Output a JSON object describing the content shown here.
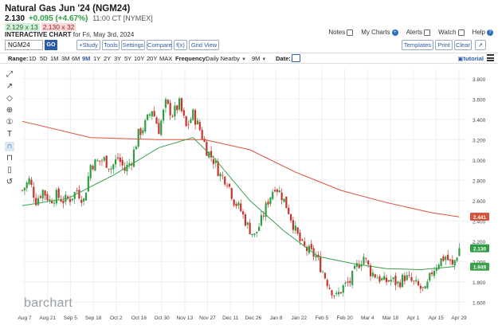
{
  "header": {
    "title": "Natural Gas Jun '24 (NGM24)",
    "last": "2.130",
    "change": "+0.095 (+4.67%)",
    "time": "11:00 CT [NYMEX]",
    "bid": "2.129 x 13",
    "ask": "2.130 x 32",
    "subtitle_bold": "INTERACTIVE CHART",
    "subtitle_rest": "for Fri, May 3rd, 2024"
  },
  "links": {
    "notes": "Notes",
    "mycharts": "My Charts",
    "alerts": "Alerts",
    "watch": "Watch",
    "help": "Help"
  },
  "toolbar": {
    "symbol": "NGM24",
    "go": "GO",
    "study": "+Study",
    "tools": "Tools",
    "settings": "Settings",
    "compare": "Compare",
    "fx": "f(x)",
    "gridview": "Grid View",
    "templates": "Templates",
    "print": "Print",
    "clear": "Clear",
    "expand": "↗"
  },
  "rangebar": {
    "range_label": "Range:",
    "ranges": [
      "1D",
      "5D",
      "1M",
      "3M",
      "6M",
      "9M",
      "1Y",
      "2Y",
      "3Y",
      "5Y",
      "10Y",
      "20Y",
      "MAX"
    ],
    "active_range": "9M",
    "frequency_label": "Frequency:",
    "frequency": "Daily Nearby",
    "period": "9M",
    "date_label": "Date:",
    "tutorial": "tutorial"
  },
  "sidebar_tools": [
    "line-tool-icon",
    "arrow-tool-icon",
    "shape-tool-icon",
    "fib-tool-icon",
    "number-tool-icon",
    "text-tool-icon",
    "magnet-tool-icon",
    "lock-tool-icon",
    "trash-tool-icon",
    "reset-tool-icon"
  ],
  "watermark": "barchart",
  "chart_data": {
    "type": "candlestick",
    "symbol": "NGM24",
    "x_labels": [
      "Aug 7",
      "Aug 21",
      "Sep 5",
      "Sep 18",
      "Oct 2",
      "Oct 16",
      "Oct 30",
      "Nov 13",
      "Nov 27",
      "Dec 11",
      "Dec 26",
      "Jan 8",
      "Jan 22",
      "Feb 5",
      "Feb 20",
      "Mar 4",
      "Mar 18",
      "Apr 1",
      "Apr 15",
      "Apr 29"
    ],
    "y_ticks": [
      "3.800",
      "3.600",
      "3.400",
      "3.200",
      "3.000",
      "2.800",
      "2.600",
      "2.400",
      "2.200",
      "2.000",
      "1.800",
      "1.600"
    ],
    "ylim": [
      1.5,
      3.9
    ],
    "close_path": [
      [
        0,
        2.7
      ],
      [
        3,
        2.8
      ],
      [
        6,
        2.6
      ],
      [
        9,
        2.7
      ],
      [
        12,
        2.6
      ],
      [
        15,
        2.65
      ],
      [
        18,
        2.6
      ],
      [
        21,
        2.62
      ],
      [
        24,
        2.7
      ],
      [
        27,
        2.6
      ],
      [
        30,
        2.95
      ],
      [
        33,
        2.98
      ],
      [
        36,
        3.0
      ],
      [
        39,
        2.92
      ],
      [
        42,
        3.02
      ],
      [
        45,
        2.9
      ],
      [
        48,
        3.0
      ],
      [
        51,
        3.25
      ],
      [
        54,
        3.35
      ],
      [
        57,
        3.5
      ],
      [
        60,
        3.3
      ],
      [
        63,
        3.55
      ],
      [
        66,
        3.45
      ],
      [
        69,
        3.55
      ],
      [
        72,
        3.32
      ],
      [
        75,
        3.45
      ],
      [
        78,
        3.3
      ],
      [
        81,
        3.1
      ],
      [
        84,
        3.0
      ],
      [
        87,
        2.85
      ],
      [
        90,
        2.8
      ],
      [
        93,
        2.6
      ],
      [
        96,
        2.5
      ],
      [
        99,
        2.35
      ],
      [
        102,
        2.25
      ],
      [
        105,
        2.4
      ],
      [
        108,
        2.6
      ],
      [
        111,
        2.75
      ],
      [
        114,
        2.65
      ],
      [
        117,
        2.5
      ],
      [
        120,
        2.3
      ],
      [
        123,
        2.15
      ],
      [
        126,
        2.1
      ],
      [
        129,
        2.05
      ],
      [
        132,
        1.9
      ],
      [
        135,
        1.75
      ],
      [
        138,
        1.65
      ],
      [
        141,
        1.75
      ],
      [
        144,
        1.8
      ],
      [
        147,
        1.95
      ],
      [
        150,
        2.05
      ],
      [
        153,
        1.9
      ],
      [
        156,
        1.85
      ],
      [
        159,
        1.8
      ],
      [
        162,
        1.82
      ],
      [
        165,
        1.78
      ],
      [
        168,
        1.85
      ],
      [
        171,
        1.8
      ],
      [
        174,
        1.75
      ],
      [
        177,
        1.7
      ],
      [
        180,
        1.9
      ],
      [
        183,
        2.0
      ],
      [
        186,
        2.05
      ],
      [
        189,
        1.95
      ],
      [
        192,
        2.13
      ]
    ],
    "sma_100": [
      [
        0,
        2.55
      ],
      [
        20,
        2.62
      ],
      [
        40,
        2.85
      ],
      [
        60,
        3.12
      ],
      [
        75,
        3.22
      ],
      [
        85,
        3.0
      ],
      [
        100,
        2.6
      ],
      [
        115,
        2.3
      ],
      [
        130,
        2.05
      ],
      [
        145,
        1.98
      ],
      [
        160,
        1.93
      ],
      [
        175,
        1.92
      ],
      [
        190,
        1.95
      ]
    ],
    "sma_200": [
      [
        0,
        3.38
      ],
      [
        30,
        3.22
      ],
      [
        60,
        3.2
      ],
      [
        80,
        3.2
      ],
      [
        100,
        3.1
      ],
      [
        120,
        2.88
      ],
      [
        140,
        2.7
      ],
      [
        160,
        2.58
      ],
      [
        180,
        2.48
      ],
      [
        192,
        2.44
      ]
    ],
    "labels": {
      "last": "2.130",
      "sma_100": "1.949",
      "sma_200": "2.441"
    },
    "colors": {
      "up": "#2e9d44",
      "down": "#c8342c",
      "sma_100": "#3aa04a",
      "sma_200": "#d9533b",
      "last": "#2e9d44",
      "grid": "#eeeeee"
    }
  }
}
